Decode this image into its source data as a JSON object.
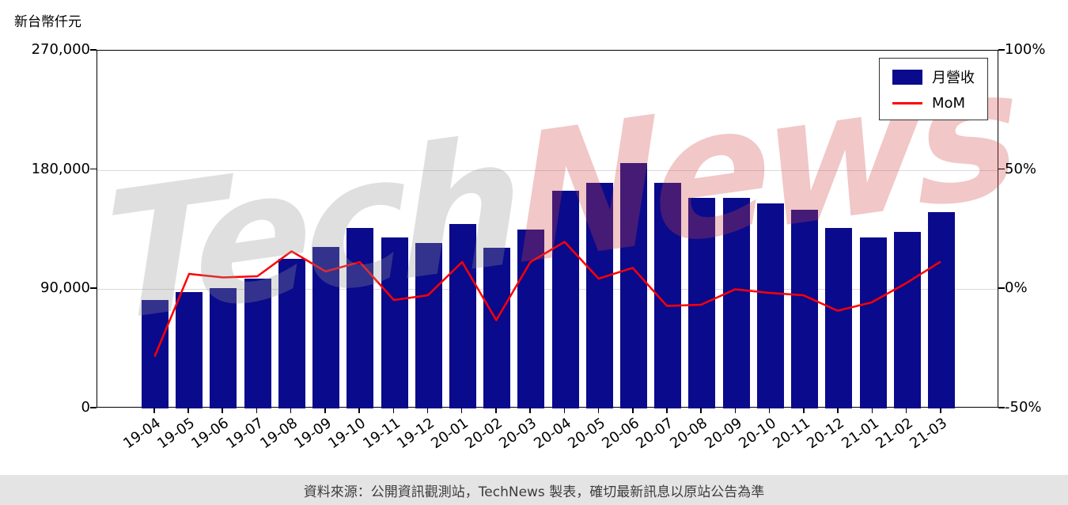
{
  "watermark": {
    "part1": "Tech",
    "part2": "News"
  },
  "footer": {
    "text": "資料來源：公開資訊觀測站，TechNews 製表，確切最新訊息以原站公告為準"
  },
  "chart_data": {
    "type": "combo",
    "categories": [
      "19-04",
      "19-05",
      "19-06",
      "19-07",
      "19-08",
      "19-09",
      "19-10",
      "19-11",
      "19-12",
      "20-01",
      "20-02",
      "20-03",
      "20-04",
      "20-05",
      "20-06",
      "20-07",
      "20-08",
      "20-09",
      "20-10",
      "20-11",
      "20-12",
      "21-01",
      "21-02",
      "21-03"
    ],
    "series": [
      {
        "name": "月營收",
        "type": "bar",
        "axis": "left",
        "color": "#0a0a8c",
        "values": [
          82000,
          88000,
          91000,
          98000,
          113000,
          122000,
          136000,
          129000,
          125000,
          139000,
          121000,
          135000,
          164000,
          170000,
          185000,
          170000,
          159000,
          159000,
          155000,
          150000,
          136000,
          129000,
          133000,
          148000
        ]
      },
      {
        "name": "MoM",
        "type": "line",
        "axis": "right",
        "color": "#ff0000",
        "values": [
          -28.5,
          6,
          4.5,
          5,
          15.5,
          7,
          11,
          -5,
          -3,
          11,
          -13.5,
          11,
          19.5,
          4,
          8.5,
          -7.5,
          -7,
          -0.5,
          -2,
          -3,
          -9.5,
          -6,
          2,
          11
        ]
      }
    ],
    "left_axis": {
      "title": "新台幣仟元",
      "min": 0,
      "max": 270000,
      "ticks": [
        {
          "value": 270000,
          "label": "270,000"
        },
        {
          "value": 180000,
          "label": "180,000"
        },
        {
          "value": 90000,
          "label": "90,000"
        },
        {
          "value": 0,
          "label": "0"
        }
      ]
    },
    "right_axis": {
      "min": -50,
      "max": 100,
      "ticks": [
        {
          "value": 100,
          "label": "100%"
        },
        {
          "value": 50,
          "label": "50%"
        },
        {
          "value": 0,
          "label": "0%"
        },
        {
          "value": -50,
          "label": "-50%"
        }
      ]
    },
    "grid": true,
    "legend_position": "top-right"
  }
}
